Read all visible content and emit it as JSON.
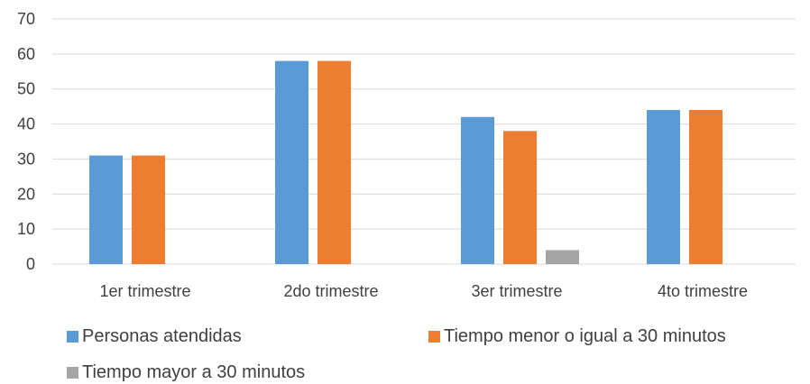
{
  "chart_data": {
    "type": "bar",
    "title": "",
    "xlabel": "",
    "ylabel": "",
    "categories": [
      "1er trimestre",
      "2do trimestre",
      "3er trimestre",
      "4to trimestre"
    ],
    "series": [
      {
        "name": "Personas atendidas",
        "color": "#5B9BD5",
        "values": [
          31,
          58,
          42,
          44
        ]
      },
      {
        "name": "Tiempo menor o igual a 30 minutos",
        "color": "#ED7D31",
        "values": [
          31,
          58,
          38,
          44
        ]
      },
      {
        "name": "Tiempo mayor a 30 minutos",
        "color": "#A5A5A5",
        "values": [
          0,
          0,
          4,
          0
        ]
      }
    ],
    "ylim": [
      0,
      70
    ],
    "yticks": [
      0,
      10,
      20,
      30,
      40,
      50,
      60,
      70
    ],
    "grid": true,
    "legend_position": "bottom"
  }
}
